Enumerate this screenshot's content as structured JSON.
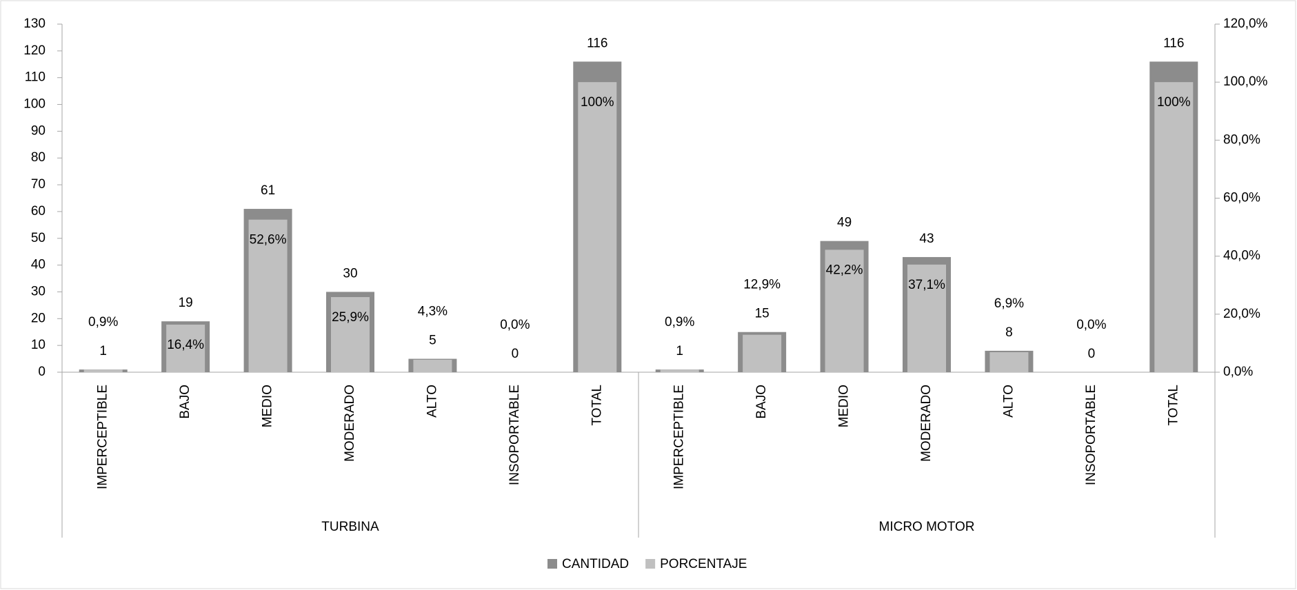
{
  "chart_data": {
    "type": "bar",
    "groups": [
      {
        "label": "TURBINA",
        "categories": [
          "IMPERCEPTIBLE",
          "BAJO",
          "MEDIO",
          "MODERADO",
          "ALTO",
          "INSOPORTABLE",
          "TOTAL"
        ]
      },
      {
        "label": "MICRO MOTOR",
        "categories": [
          "IMPERCEPTIBLE",
          "BAJO",
          "MEDIO",
          "MODERADO",
          "ALTO",
          "INSOPORTABLE",
          "TOTAL"
        ]
      }
    ],
    "series": [
      {
        "name": "CANTIDAD",
        "color": "#8c8c8c",
        "values": [
          1,
          19,
          61,
          30,
          5,
          0,
          116,
          1,
          15,
          49,
          43,
          8,
          0,
          116
        ]
      },
      {
        "name": "PORCENTAJE",
        "color": "#c0c0c0",
        "axis": "y2",
        "values": [
          0.9,
          16.4,
          52.6,
          25.9,
          4.3,
          0.0,
          100,
          0.9,
          12.9,
          42.2,
          37.1,
          6.9,
          0.0,
          100
        ],
        "value_labels": [
          "0,9%",
          "16,4%",
          "52,6%",
          "25,9%",
          "4,3%",
          "0,0%",
          "100%",
          "0,9%",
          "12,9%",
          "42,2%",
          "37,1%",
          "6,9%",
          "0,0%",
          "100%"
        ]
      }
    ],
    "ylim": [
      0,
      130
    ],
    "yticks": [
      0,
      10,
      20,
      30,
      40,
      50,
      60,
      70,
      80,
      90,
      100,
      110,
      120,
      130
    ],
    "y2lim": [
      0,
      120
    ],
    "y2ticks": [
      {
        "value": 0,
        "label": "0,0%"
      },
      {
        "value": 20,
        "label": "20,0%"
      },
      {
        "value": 40,
        "label": "40,0%"
      },
      {
        "value": 60,
        "label": "60,0%"
      },
      {
        "value": 80,
        "label": "80,0%"
      },
      {
        "value": 100,
        "label": "100,0%"
      },
      {
        "value": 120,
        "label": "120,0%"
      }
    ],
    "legend": "bottom"
  }
}
